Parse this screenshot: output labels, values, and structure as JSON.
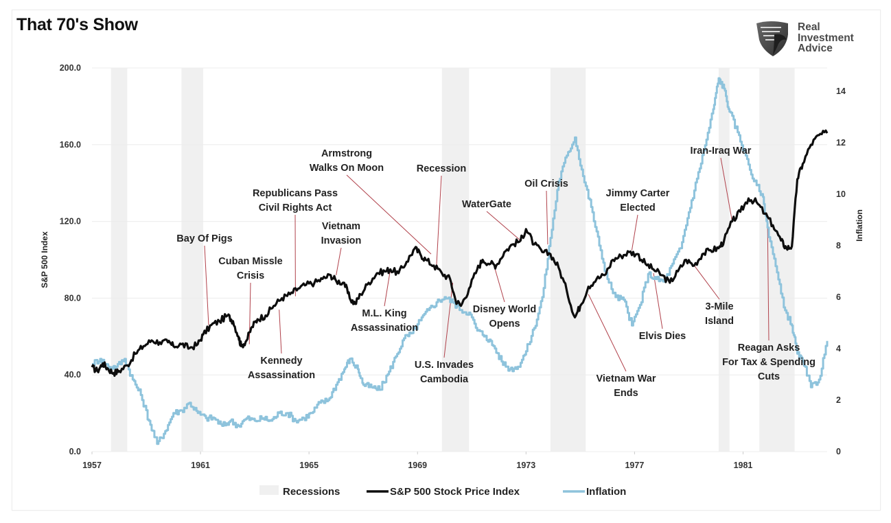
{
  "title": "That 70's Show",
  "logo": {
    "icon": "eagle-shield-icon",
    "lines": [
      "Real",
      "Investment",
      "Advice"
    ]
  },
  "colors": {
    "sp500": "#0d0d0d",
    "inflation": "#8ec3dc",
    "recession": "#f0f0f0",
    "annotation_line": "#b0404a",
    "grid": "#ececec"
  },
  "chart_data": {
    "type": "line",
    "title": "That 70's Show",
    "xlabel": "",
    "ylabel_left": "S&P 500 Index",
    "ylabel_right": "Inflation",
    "x_range": [
      1957,
      1984.1
    ],
    "ylim_left": [
      0,
      200
    ],
    "ylim_right": [
      0,
      14.9
    ],
    "x_ticks": [
      "1957",
      "1961",
      "1965",
      "1969",
      "1973",
      "1977",
      "1981"
    ],
    "y_ticks_left": [
      "0.0",
      "40.0",
      "80.0",
      "120.0",
      "160.0",
      "200.0"
    ],
    "y_ticks_right": [
      "0",
      "2",
      "4",
      "6",
      "8",
      "10",
      "12",
      "14"
    ],
    "grid": true,
    "legend_position": "bottom",
    "legend": [
      "Recessions",
      "S&P 500 Stock Price Index",
      "Inflation"
    ],
    "recessions": [
      [
        1957.7,
        1958.3
      ],
      [
        1960.3,
        1961.1
      ],
      [
        1969.9,
        1970.9
      ],
      [
        1973.9,
        1975.2
      ],
      [
        1980.1,
        1980.5
      ],
      [
        1981.6,
        1982.9
      ]
    ],
    "series": [
      {
        "name": "S&P 500 Stock Price Index",
        "axis": "left",
        "x": [
          1957.0,
          1957.2,
          1957.4,
          1957.6,
          1957.8,
          1958.0,
          1958.3,
          1958.6,
          1958.9,
          1959.2,
          1959.5,
          1959.8,
          1960.0,
          1960.3,
          1960.6,
          1960.9,
          1961.1,
          1961.4,
          1961.7,
          1962.0,
          1962.2,
          1962.4,
          1962.5,
          1962.7,
          1962.9,
          1963.1,
          1963.4,
          1963.7,
          1964.0,
          1964.3,
          1964.6,
          1964.9,
          1965.2,
          1965.5,
          1965.8,
          1966.0,
          1966.3,
          1966.5,
          1966.7,
          1966.9,
          1967.2,
          1967.5,
          1967.8,
          1968.0,
          1968.3,
          1968.6,
          1968.9,
          1969.1,
          1969.3,
          1969.6,
          1969.9,
          1970.2,
          1970.4,
          1970.6,
          1970.9,
          1971.2,
          1971.4,
          1971.7,
          1971.9,
          1972.2,
          1972.5,
          1972.8,
          1973.0,
          1973.3,
          1973.6,
          1973.9,
          1974.2,
          1974.5,
          1974.8,
          1975.0,
          1975.3,
          1975.6,
          1975.9,
          1976.2,
          1976.5,
          1976.8,
          1977.1,
          1977.4,
          1977.7,
          1978.0,
          1978.3,
          1978.6,
          1978.9,
          1979.2,
          1979.5,
          1979.8,
          1980.1,
          1980.3,
          1980.6,
          1980.9,
          1981.2,
          1981.5,
          1981.8,
          1982.1,
          1982.4,
          1982.6,
          1982.8,
          1983.0,
          1983.2,
          1983.5,
          1983.8,
          1984.1
        ],
        "y": [
          44,
          42,
          46,
          43,
          41,
          42,
          45,
          51,
          55,
          58,
          57,
          57,
          55,
          56,
          54,
          56,
          61,
          66,
          68,
          71,
          68,
          60,
          55,
          58,
          65,
          69,
          71,
          76,
          80,
          82,
          85,
          87,
          88,
          90,
          92,
          89,
          88,
          80,
          77,
          82,
          88,
          93,
          94,
          95,
          93,
          99,
          106,
          103,
          100,
          97,
          93,
          90,
          79,
          76,
          85,
          95,
          100,
          98,
          97,
          104,
          108,
          110,
          116,
          108,
          104,
          103,
          96,
          84,
          70,
          76,
          86,
          90,
          92,
          100,
          102,
          104,
          103,
          98,
          95,
          92,
          88,
          94,
          100,
          97,
          103,
          105,
          106,
          110,
          120,
          125,
          132,
          130,
          124,
          118,
          110,
          106,
          107,
          142,
          150,
          160,
          165,
          166
        ]
      },
      {
        "name": "Inflation",
        "axis": "right",
        "x": [
          1957.0,
          1957.3,
          1957.6,
          1957.9,
          1958.2,
          1958.5,
          1958.8,
          1959.1,
          1959.4,
          1959.7,
          1960.0,
          1960.3,
          1960.6,
          1960.9,
          1961.2,
          1961.5,
          1961.8,
          1962.1,
          1962.4,
          1962.7,
          1963.0,
          1963.3,
          1963.6,
          1963.9,
          1964.2,
          1964.5,
          1964.8,
          1965.1,
          1965.4,
          1965.7,
          1966.0,
          1966.3,
          1966.5,
          1966.8,
          1967.0,
          1967.3,
          1967.6,
          1967.9,
          1968.2,
          1968.5,
          1968.8,
          1969.1,
          1969.4,
          1969.7,
          1970.0,
          1970.3,
          1970.6,
          1970.9,
          1971.2,
          1971.5,
          1971.8,
          1972.1,
          1972.4,
          1972.7,
          1973.0,
          1973.3,
          1973.6,
          1973.9,
          1974.2,
          1974.5,
          1974.8,
          1975.1,
          1975.4,
          1975.7,
          1976.0,
          1976.3,
          1976.6,
          1976.9,
          1977.2,
          1977.5,
          1977.8,
          1978.1,
          1978.4,
          1978.7,
          1979.0,
          1979.3,
          1979.6,
          1979.9,
          1980.1,
          1980.3,
          1980.5,
          1980.8,
          1981.1,
          1981.4,
          1981.7,
          1981.9,
          1982.2,
          1982.5,
          1982.8,
          1983.0,
          1983.2,
          1983.5,
          1983.8,
          1984.1
        ],
        "y": [
          3.4,
          3.6,
          3.3,
          3.3,
          3.6,
          2.8,
          2.2,
          1.2,
          0.3,
          0.8,
          1.5,
          1.6,
          1.9,
          1.5,
          1.3,
          1.3,
          1.0,
          1.2,
          1.0,
          1.3,
          1.2,
          1.3,
          1.2,
          1.5,
          1.5,
          1.2,
          1.3,
          1.5,
          1.9,
          2.0,
          2.6,
          3.2,
          3.6,
          3.2,
          2.6,
          2.5,
          2.4,
          3.0,
          3.7,
          4.4,
          4.6,
          5.1,
          5.5,
          5.8,
          6.0,
          5.8,
          5.5,
          5.4,
          4.7,
          4.5,
          4.1,
          3.5,
          3.2,
          3.3,
          3.9,
          4.8,
          6.0,
          8.3,
          10.5,
          11.5,
          12.2,
          10.7,
          9.5,
          8.0,
          6.7,
          6.0,
          5.9,
          4.9,
          5.7,
          6.9,
          6.7,
          6.6,
          7.3,
          7.9,
          9.3,
          10.6,
          11.9,
          13.3,
          14.5,
          14.1,
          13.2,
          12.4,
          11.5,
          10.5,
          10.0,
          8.7,
          7.2,
          5.6,
          4.9,
          3.8,
          3.5,
          2.5,
          2.8,
          4.3
        ]
      }
    ],
    "annotations": [
      {
        "lines": [
          "Bay Of Pigs"
        ],
        "target_x": 1961.3,
        "target_y": 66
      },
      {
        "lines": [
          "Cuban Missle",
          "Crisis"
        ],
        "target_x": 1962.8,
        "target_y": 56
      },
      {
        "lines": [
          "Republicans Pass",
          "Civil Rights Act"
        ],
        "target_x": 1964.5,
        "target_y": 81
      },
      {
        "lines": [
          "Kennedy",
          "Assassination"
        ],
        "target_x": 1963.9,
        "target_y": 74
      },
      {
        "lines": [
          "Vietnam",
          "Invasion"
        ],
        "target_x": 1966.0,
        "target_y": 92
      },
      {
        "lines": [
          "Armstrong",
          "Walks On Moon"
        ],
        "target_x": 1969.5,
        "target_y": 103
      },
      {
        "lines": [
          "M.L. King",
          "Assassination"
        ],
        "target_x": 1968.0,
        "target_y": 95
      },
      {
        "lines": [
          "Recession"
        ],
        "target_x": 1969.7,
        "target_y": 97
      },
      {
        "lines": [
          "U.S. Invades",
          "Cambodia"
        ],
        "target_x": 1970.3,
        "target_y": 88
      },
      {
        "lines": [
          "WaterGate"
        ],
        "target_x": 1972.8,
        "target_y": 110
      },
      {
        "lines": [
          "Disney World",
          "Opens"
        ],
        "target_x": 1971.8,
        "target_y": 98
      },
      {
        "lines": [
          "Oil Crisis"
        ],
        "target_x": 1973.8,
        "target_y": 108
      },
      {
        "lines": [
          "Vietnam War",
          "Ends"
        ],
        "target_x": 1975.3,
        "target_y": 82
      },
      {
        "lines": [
          "Jimmy Carter",
          "Elected"
        ],
        "target_x": 1976.9,
        "target_y": 105
      },
      {
        "lines": [
          "Elvis Dies"
        ],
        "target_x": 1977.7,
        "target_y": 93
      },
      {
        "lines": [
          "3-Mile",
          "Island"
        ],
        "target_x": 1979.2,
        "target_y": 97
      },
      {
        "lines": [
          "Iran-Iraq War"
        ],
        "target_x": 1980.6,
        "target_y": 120
      },
      {
        "lines": [
          "Reagan Asks",
          "For Tax & Spending",
          "Cuts"
        ],
        "target_x": 1981.9,
        "target_y": 122
      }
    ]
  }
}
